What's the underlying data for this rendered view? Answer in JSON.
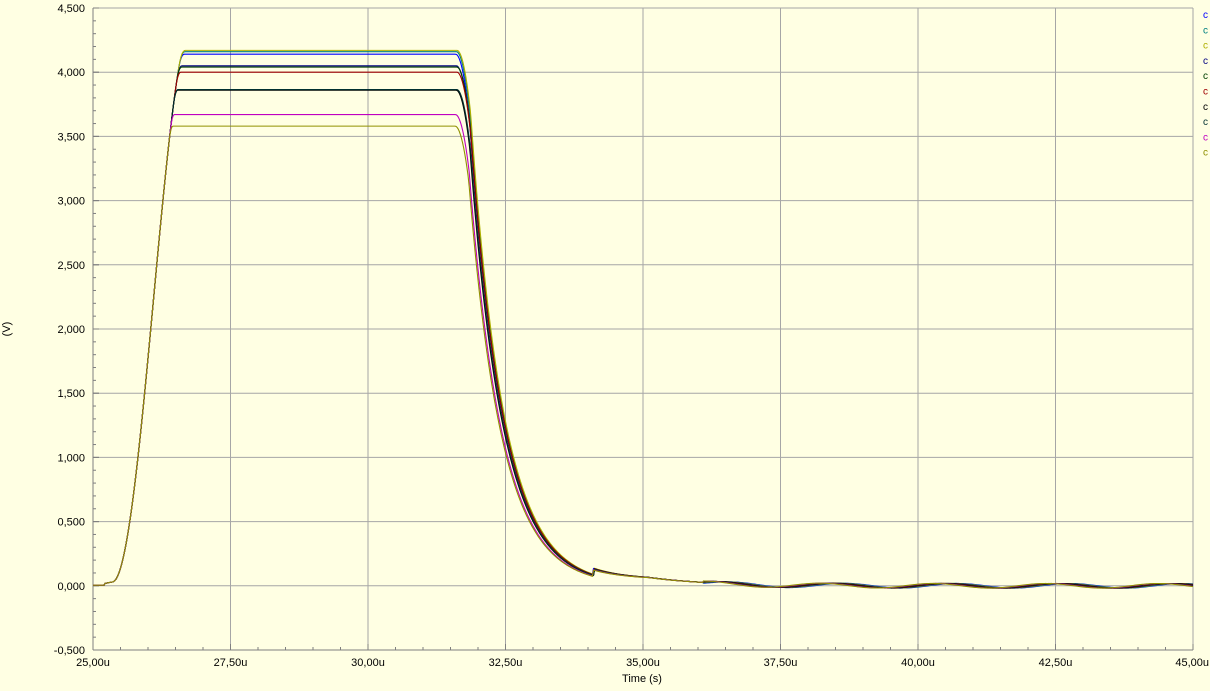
{
  "colors": {
    "background": "#ffffe3",
    "grid": "#a6a6a6",
    "axis": "#7f7f7f"
  },
  "chart_data": {
    "type": "line",
    "xlabel": "Time (s)",
    "ylabel": "(V)",
    "xlim": [
      25.0,
      45.0
    ],
    "ylim": [
      -0.5,
      4.5
    ],
    "x_unit_suffix": "u",
    "x_ticks": [
      25.0,
      27.5,
      30.0,
      32.5,
      35.0,
      37.5,
      40.0,
      42.5,
      45.0
    ],
    "x_tick_labels": [
      "25,00u",
      "27,50u",
      "30,00u",
      "32,50u",
      "35,00u",
      "37,50u",
      "40,00u",
      "42,50u",
      "45,00u"
    ],
    "y_ticks": [
      -0.5,
      0.0,
      0.5,
      1.0,
      1.5,
      2.0,
      2.5,
      3.0,
      3.5,
      4.0,
      4.5
    ],
    "y_tick_labels": [
      "-0,500",
      "0,000",
      "0,500",
      "1,000",
      "1,500",
      "2,000",
      "2,500",
      "3,000",
      "3,500",
      "4,000",
      "4,500"
    ],
    "grid": true,
    "legend_position": "right",
    "legend_entries": [
      "c",
      "c",
      "c",
      "c",
      "c",
      "c",
      "c",
      "c",
      "c",
      "c"
    ],
    "shape": {
      "rise_start": 25.2,
      "saturation_time": 26.85,
      "fall_start": 31.55,
      "fall_time_constant": 0.6,
      "ringing_amplitude": 0.018,
      "ringing_period": 2.05
    },
    "series": [
      {
        "color": "#0000ff",
        "plateau": 4.14
      },
      {
        "color": "#008080",
        "plateau": 4.16
      },
      {
        "color": "#b0b000",
        "plateau": 4.17
      },
      {
        "color": "#000080",
        "plateau": 4.05
      },
      {
        "color": "#004000",
        "plateau": 4.04
      },
      {
        "color": "#a00000",
        "plateau": 4.0
      },
      {
        "color": "#000000",
        "plateau": 3.86
      },
      {
        "color": "#003030",
        "plateau": 3.865
      },
      {
        "color": "#c000c0",
        "plateau": 3.67
      },
      {
        "color": "#909000",
        "plateau": 3.58
      }
    ]
  }
}
